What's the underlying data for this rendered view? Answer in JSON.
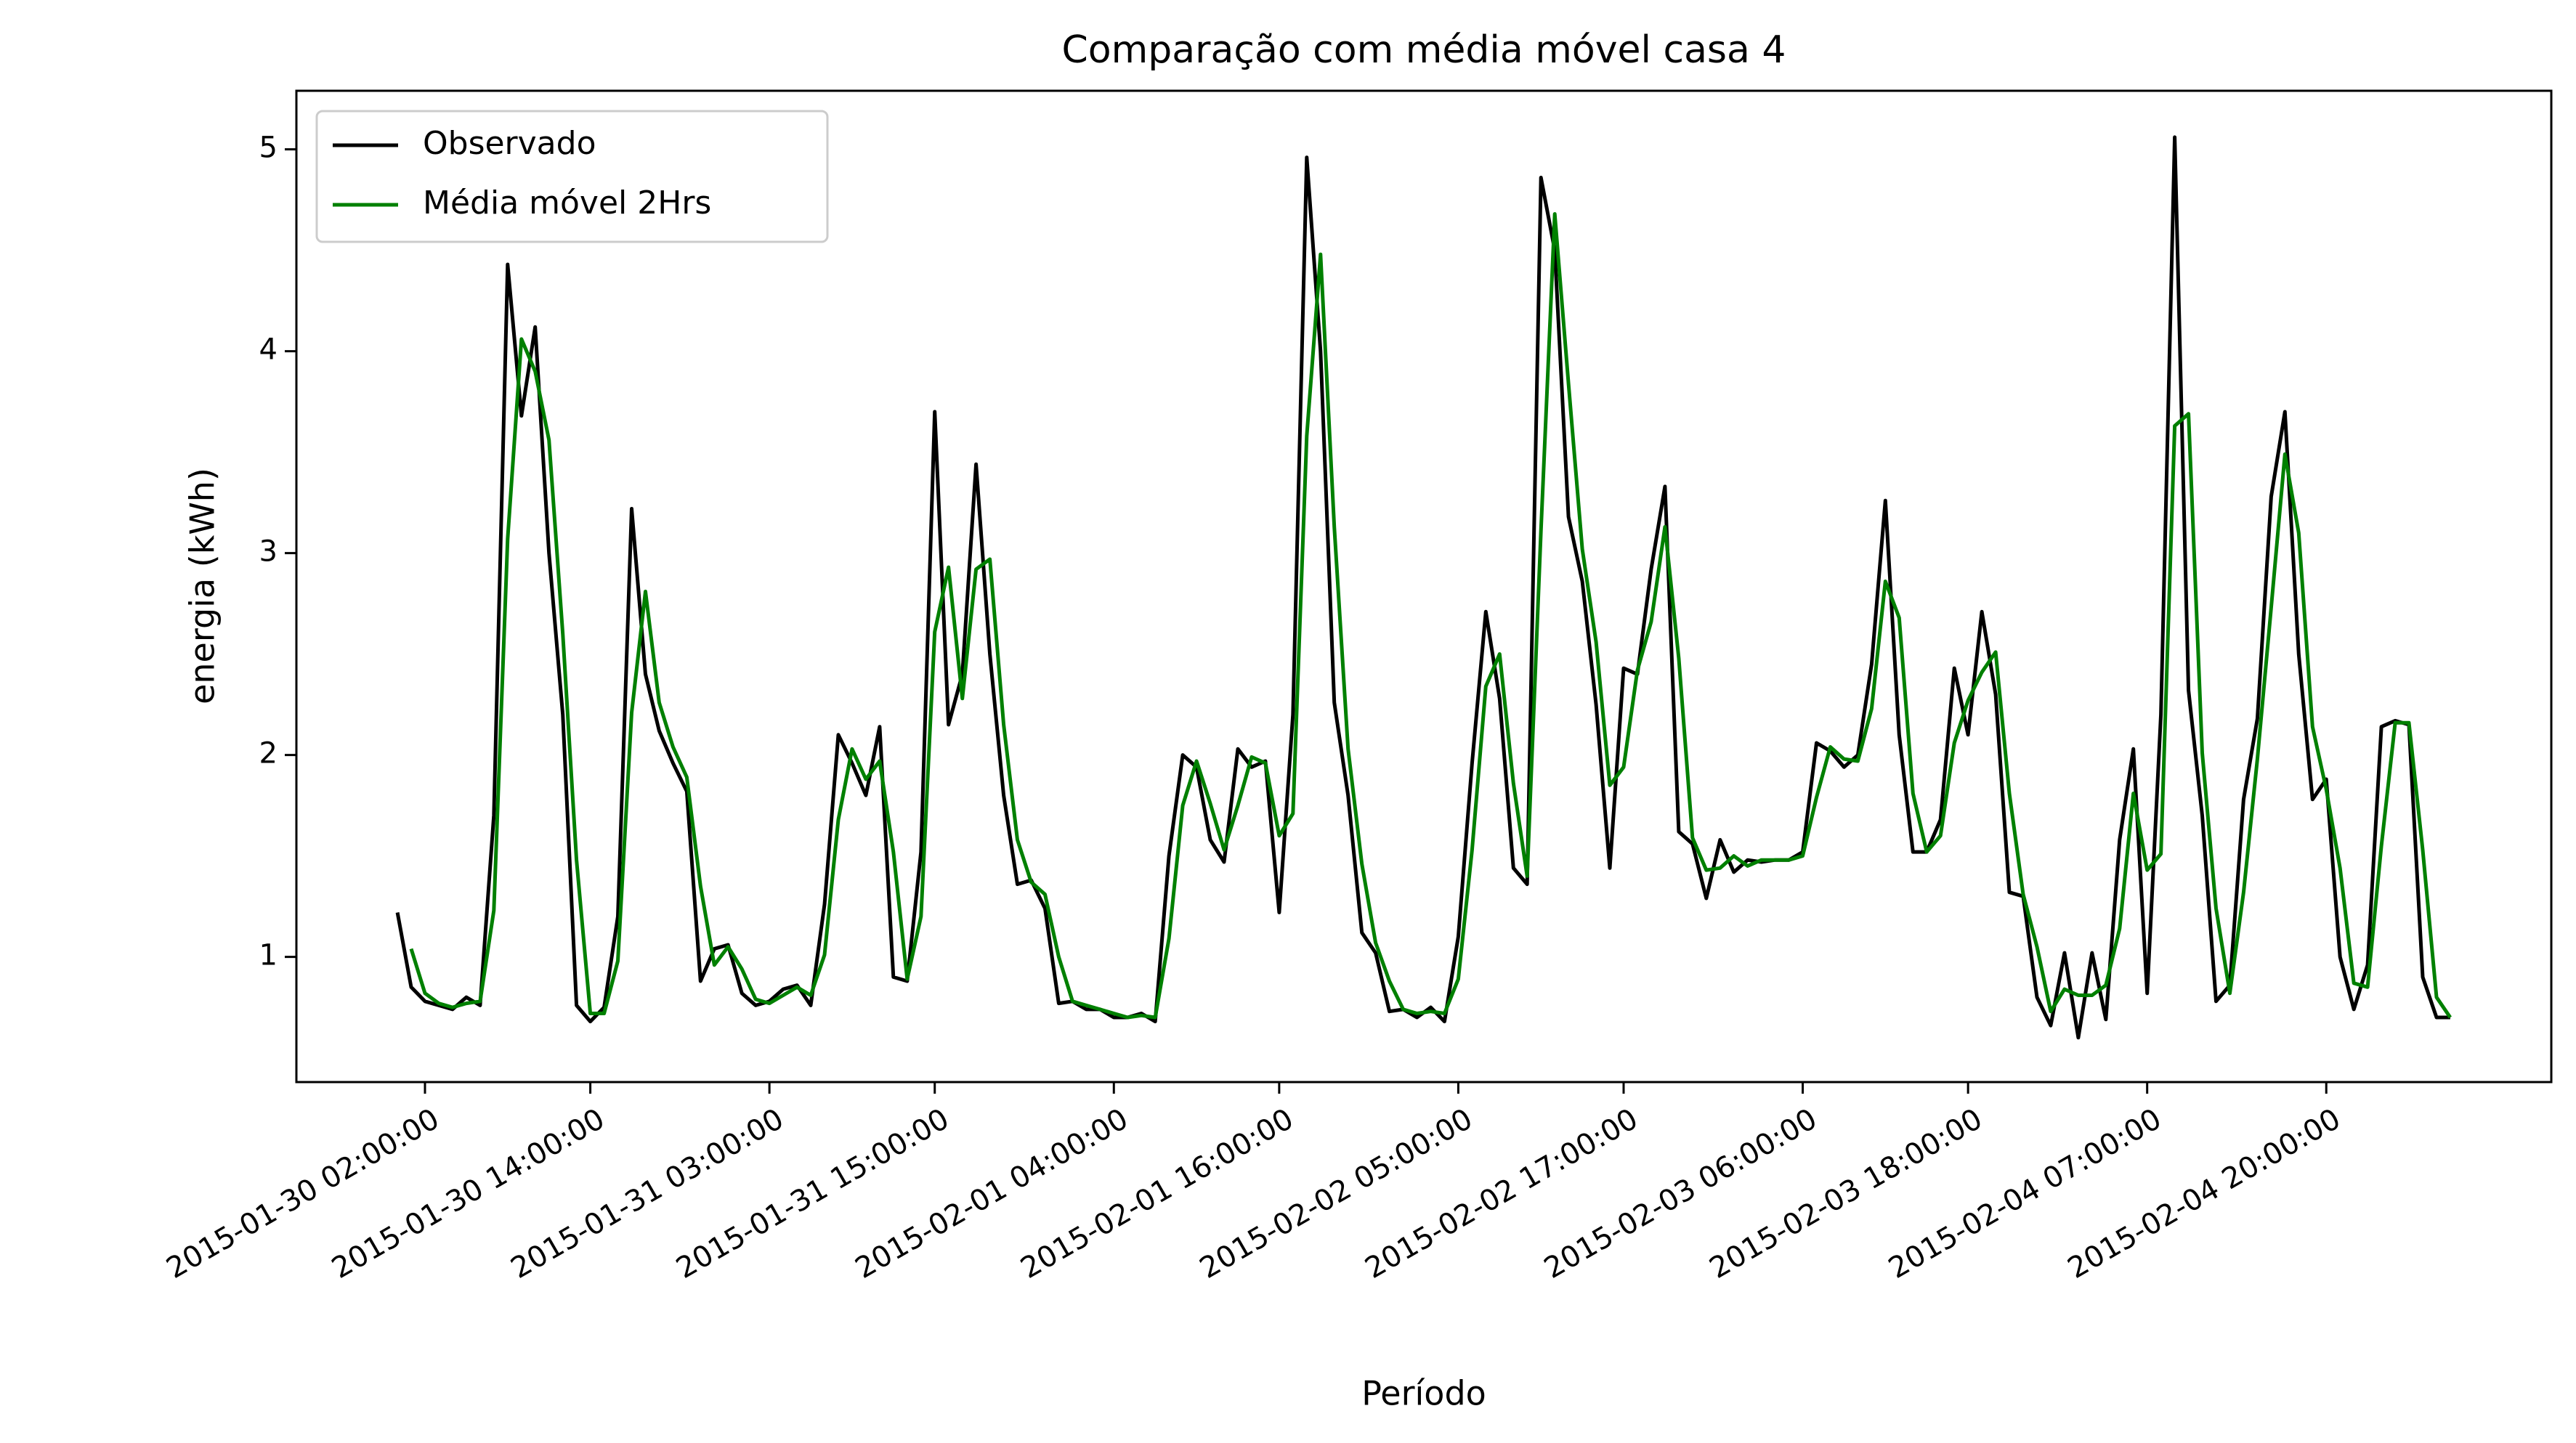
{
  "chart_data": {
    "type": "line",
    "title": "Comparação com média móvel casa 4",
    "x_label": "Período",
    "y_label": "energia (kWh)",
    "x": [
      "2015-01-30 00:00:00",
      "2015-01-30 01:00:00",
      "2015-01-30 02:00:00",
      "2015-01-30 03:00:00",
      "2015-01-30 04:00:00",
      "2015-01-30 05:00:00",
      "2015-01-30 06:00:00",
      "2015-01-30 07:00:00",
      "2015-01-30 08:00:00",
      "2015-01-30 09:00:00",
      "2015-01-30 10:00:00",
      "2015-01-30 11:00:00",
      "2015-01-30 12:00:00",
      "2015-01-30 13:00:00",
      "2015-01-30 14:00:00",
      "2015-01-30 15:00:00",
      "2015-01-30 16:00:00",
      "2015-01-30 17:00:00",
      "2015-01-30 18:00:00",
      "2015-01-30 19:00:00",
      "2015-01-30 20:00:00",
      "2015-01-30 21:00:00",
      "2015-01-30 22:00:00",
      "2015-01-30 23:00:00",
      "2015-01-31 00:00:00",
      "2015-01-31 01:00:00",
      "2015-01-31 02:00:00",
      "2015-01-31 03:00:00",
      "2015-01-31 04:00:00",
      "2015-01-31 05:00:00",
      "2015-01-31 06:00:00",
      "2015-01-31 07:00:00",
      "2015-01-31 08:00:00",
      "2015-01-31 09:00:00",
      "2015-01-31 10:00:00",
      "2015-01-31 11:00:00",
      "2015-01-31 12:00:00",
      "2015-01-31 13:00:00",
      "2015-01-31 14:00:00",
      "2015-01-31 15:00:00",
      "2015-01-31 16:00:00",
      "2015-01-31 17:00:00",
      "2015-01-31 18:00:00",
      "2015-01-31 19:00:00",
      "2015-01-31 20:00:00",
      "2015-01-31 21:00:00",
      "2015-01-31 22:00:00",
      "2015-01-31 23:00:00",
      "2015-02-01 00:00:00",
      "2015-02-01 01:00:00",
      "2015-02-01 02:00:00",
      "2015-02-01 03:00:00",
      "2015-02-01 04:00:00",
      "2015-02-01 05:00:00",
      "2015-02-01 06:00:00",
      "2015-02-01 07:00:00",
      "2015-02-01 08:00:00",
      "2015-02-01 09:00:00",
      "2015-02-01 10:00:00",
      "2015-02-01 11:00:00",
      "2015-02-01 12:00:00",
      "2015-02-01 13:00:00",
      "2015-02-01 14:00:00",
      "2015-02-01 15:00:00",
      "2015-02-01 16:00:00",
      "2015-02-01 17:00:00",
      "2015-02-01 18:00:00",
      "2015-02-01 19:00:00",
      "2015-02-01 20:00:00",
      "2015-02-01 21:00:00",
      "2015-02-01 22:00:00",
      "2015-02-01 23:00:00",
      "2015-02-02 00:00:00",
      "2015-02-02 01:00:00",
      "2015-02-02 02:00:00",
      "2015-02-02 03:00:00",
      "2015-02-02 04:00:00",
      "2015-02-02 05:00:00",
      "2015-02-02 06:00:00",
      "2015-02-02 07:00:00",
      "2015-02-02 08:00:00",
      "2015-02-02 09:00:00",
      "2015-02-02 10:00:00",
      "2015-02-02 11:00:00",
      "2015-02-02 12:00:00",
      "2015-02-02 13:00:00",
      "2015-02-02 14:00:00",
      "2015-02-02 15:00:00",
      "2015-02-02 16:00:00",
      "2015-02-02 17:00:00",
      "2015-02-02 18:00:00",
      "2015-02-02 19:00:00",
      "2015-02-02 20:00:00",
      "2015-02-02 21:00:00",
      "2015-02-02 22:00:00",
      "2015-02-02 23:00:00",
      "2015-02-03 00:00:00",
      "2015-02-03 01:00:00",
      "2015-02-03 02:00:00",
      "2015-02-03 03:00:00",
      "2015-02-03 04:00:00",
      "2015-02-03 05:00:00",
      "2015-02-03 06:00:00",
      "2015-02-03 07:00:00",
      "2015-02-03 08:00:00",
      "2015-02-03 09:00:00",
      "2015-02-03 10:00:00",
      "2015-02-03 11:00:00",
      "2015-02-03 12:00:00",
      "2015-02-03 13:00:00",
      "2015-02-03 14:00:00",
      "2015-02-03 15:00:00",
      "2015-02-03 16:00:00",
      "2015-02-03 17:00:00",
      "2015-02-03 18:00:00",
      "2015-02-03 19:00:00",
      "2015-02-03 20:00:00",
      "2015-02-03 21:00:00",
      "2015-02-03 22:00:00",
      "2015-02-03 23:00:00",
      "2015-02-04 00:00:00",
      "2015-02-04 01:00:00",
      "2015-02-04 02:00:00",
      "2015-02-04 03:00:00",
      "2015-02-04 04:00:00",
      "2015-02-04 05:00:00",
      "2015-02-04 06:00:00",
      "2015-02-04 07:00:00",
      "2015-02-04 08:00:00",
      "2015-02-04 09:00:00",
      "2015-02-04 10:00:00",
      "2015-02-04 11:00:00",
      "2015-02-04 12:00:00",
      "2015-02-04 13:00:00",
      "2015-02-04 14:00:00",
      "2015-02-04 15:00:00",
      "2015-02-04 16:00:00",
      "2015-02-04 17:00:00",
      "2015-02-04 18:00:00",
      "2015-02-04 19:00:00",
      "2015-02-04 20:00:00",
      "2015-02-04 21:00:00",
      "2015-02-04 22:00:00",
      "2015-02-04 23:00:00",
      "2015-02-05 00:00:00",
      "2015-02-05 01:00:00",
      "2015-02-05 02:00:00",
      "2015-02-05 03:00:00",
      "2015-02-05 04:00:00",
      "2015-02-05 05:00:00"
    ],
    "series": [
      {
        "name": "Observado",
        "color": "#000000",
        "values": [
          1.22,
          0.85,
          0.78,
          0.76,
          0.74,
          0.8,
          0.76,
          1.7,
          4.43,
          3.68,
          4.12,
          3.0,
          2.2,
          0.76,
          0.68,
          0.75,
          1.2,
          3.22,
          2.4,
          2.12,
          1.96,
          1.82,
          0.88,
          1.04,
          1.06,
          0.82,
          0.76,
          0.78,
          0.84,
          0.86,
          0.76,
          1.26,
          2.1,
          1.96,
          1.8,
          2.14,
          0.9,
          0.88,
          1.52,
          3.7,
          2.15,
          2.4,
          3.44,
          2.5,
          1.8,
          1.36,
          1.38,
          1.24,
          0.77,
          0.78,
          0.74,
          0.74,
          0.7,
          0.7,
          0.72,
          0.68,
          1.5,
          2.0,
          1.94,
          1.58,
          1.47,
          2.03,
          1.94,
          1.97,
          1.22,
          2.2,
          4.96,
          4.0,
          2.26,
          1.8,
          1.12,
          1.02,
          0.73,
          0.74,
          0.7,
          0.75,
          0.68,
          1.1,
          1.96,
          2.71,
          2.28,
          1.44,
          1.36,
          4.86,
          4.5,
          3.18,
          2.86,
          2.25,
          1.44,
          2.43,
          2.4,
          2.92,
          3.33,
          1.62,
          1.56,
          1.29,
          1.58,
          1.42,
          1.48,
          1.47,
          1.48,
          1.48,
          1.52,
          2.06,
          2.02,
          1.94,
          2.0,
          2.45,
          3.26,
          2.1,
          1.52,
          1.52,
          1.68,
          2.43,
          2.1,
          2.71,
          2.3,
          1.32,
          1.3,
          0.8,
          0.66,
          1.02,
          0.6,
          1.02,
          0.69,
          1.58,
          2.03,
          0.82,
          2.2,
          5.06,
          2.32,
          1.7,
          0.78,
          0.86,
          1.78,
          2.18,
          3.28,
          3.7,
          2.5,
          1.78,
          1.88,
          1.0,
          0.74,
          0.96,
          2.14,
          2.17,
          2.15,
          0.9,
          0.7,
          0.7
        ]
      },
      {
        "name": "Média móvel 2Hrs",
        "color": "#008000",
        "values": [
          null,
          1.04,
          0.82,
          0.77,
          0.75,
          0.77,
          0.78,
          1.23,
          3.07,
          4.06,
          3.9,
          3.56,
          2.6,
          1.48,
          0.72,
          0.72,
          0.98,
          2.21,
          2.81,
          2.26,
          2.04,
          1.89,
          1.35,
          0.96,
          1.05,
          0.94,
          0.79,
          0.77,
          0.81,
          0.85,
          0.81,
          1.01,
          1.68,
          2.03,
          1.88,
          1.97,
          1.52,
          0.89,
          1.2,
          2.61,
          2.93,
          2.28,
          2.92,
          2.97,
          2.15,
          1.58,
          1.37,
          1.31,
          1.0,
          0.78,
          0.76,
          0.74,
          0.72,
          0.7,
          0.71,
          0.7,
          1.09,
          1.75,
          1.97,
          1.76,
          1.53,
          1.75,
          1.99,
          1.96,
          1.6,
          1.71,
          3.58,
          4.48,
          3.13,
          2.03,
          1.46,
          1.07,
          0.88,
          0.74,
          0.72,
          0.73,
          0.72,
          0.89,
          1.53,
          2.34,
          2.5,
          1.86,
          1.4,
          3.11,
          4.68,
          3.84,
          3.02,
          2.56,
          1.85,
          1.94,
          2.42,
          2.66,
          3.13,
          2.48,
          1.59,
          1.43,
          1.44,
          1.5,
          1.45,
          1.48,
          1.48,
          1.48,
          1.5,
          1.79,
          2.04,
          1.98,
          1.97,
          2.23,
          2.86,
          2.68,
          1.81,
          1.52,
          1.6,
          2.06,
          2.27,
          2.41,
          2.51,
          1.81,
          1.31,
          1.05,
          0.73,
          0.84,
          0.81,
          0.81,
          0.86,
          1.14,
          1.81,
          1.43,
          1.51,
          3.63,
          3.69,
          2.01,
          1.24,
          0.82,
          1.32,
          1.98,
          2.73,
          3.49,
          3.1,
          2.14,
          1.83,
          1.44,
          0.87,
          0.85,
          1.55,
          2.16,
          2.16,
          1.53,
          0.8,
          0.7
        ]
      }
    ],
    "xlim": [
      "2015-01-29 16:40:00",
      "2015-02-05 12:20:00"
    ],
    "xticks": [
      "2015-01-30 02:00:00",
      "2015-01-30 14:00:00",
      "2015-01-31 03:00:00",
      "2015-01-31 15:00:00",
      "2015-02-01 04:00:00",
      "2015-02-01 16:00:00",
      "2015-02-02 05:00:00",
      "2015-02-02 17:00:00",
      "2015-02-03 06:00:00",
      "2015-02-03 18:00:00",
      "2015-02-04 07:00:00",
      "2015-02-04 20:00:00"
    ],
    "ylim": [
      0.38,
      5.29
    ],
    "yticks": [
      1,
      2,
      3,
      4,
      5
    ],
    "grid": false,
    "legend": "upper left"
  }
}
